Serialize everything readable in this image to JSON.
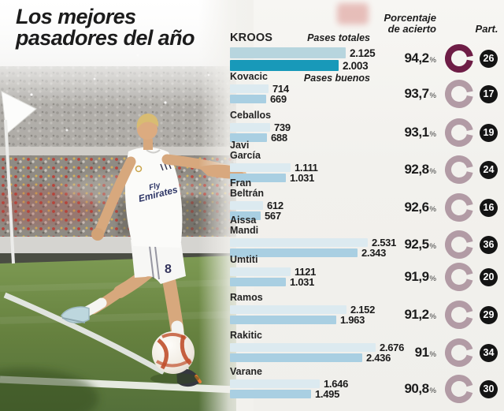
{
  "title": {
    "line1": "Los mejores",
    "line2": "pasadores del año"
  },
  "columns": {
    "accuracy_line1": "Porcentaje",
    "accuracy_line2": "de acierto",
    "participation": "Part."
  },
  "legend": {
    "total_label": "Pases totales",
    "good_label": "Pases buenos"
  },
  "photo": {
    "jersey_line1": "Fly",
    "jersey_line2": "Emirates",
    "shorts_number": "8"
  },
  "colors": {
    "text": "#1c1c1c",
    "bar_total": "#dceaf0",
    "bar_good": "#a9cfe2",
    "bar_total_highlight": "#b7d5de",
    "bar_good_highlight": "#1899b9",
    "donut_highlight": "#6e1d46",
    "donut_normal": "#b29ba5",
    "badge_bg": "#141414",
    "badge_text": "#ffffff"
  },
  "chart_data": {
    "type": "bar",
    "orientation": "horizontal",
    "series_labels": [
      "Pases totales",
      "Pases buenos"
    ],
    "percent_sign": "%",
    "players": [
      {
        "name": "KROOS",
        "name_lines": [
          "KROOS"
        ],
        "total": 2125,
        "total_display": "2.125",
        "good": 2003,
        "good_display": "2.003",
        "accuracy": 94.2,
        "accuracy_display": "94,2",
        "matches": "26",
        "highlight": true
      },
      {
        "name": "Kovacic",
        "name_lines": [
          "Kovacic"
        ],
        "total": 714,
        "total_display": "714",
        "good": 669,
        "good_display": "669",
        "accuracy": 93.7,
        "accuracy_display": "93,7",
        "matches": "17",
        "highlight": false
      },
      {
        "name": "Ceballos",
        "name_lines": [
          "Ceballos"
        ],
        "total": 739,
        "total_display": "739",
        "good": 688,
        "good_display": "688",
        "accuracy": 93.1,
        "accuracy_display": "93,1",
        "matches": "19",
        "highlight": false
      },
      {
        "name": "Javi García",
        "name_lines": [
          "Javi",
          "García"
        ],
        "total": 1111,
        "total_display": "1.111",
        "good": 1031,
        "good_display": "1.031",
        "accuracy": 92.8,
        "accuracy_display": "92,8",
        "matches": "24",
        "highlight": false
      },
      {
        "name": "Fran Beltrán",
        "name_lines": [
          "Fran",
          "Beltrán"
        ],
        "total": 612,
        "total_display": "612",
        "good": 567,
        "good_display": "567",
        "accuracy": 92.6,
        "accuracy_display": "92,6",
        "matches": "16",
        "highlight": false
      },
      {
        "name": "Aissa Mandi",
        "name_lines": [
          "Aissa",
          "Mandi"
        ],
        "total": 2531,
        "total_display": "2.531",
        "good": 2343,
        "good_display": "2.343",
        "accuracy": 92.5,
        "accuracy_display": "92,5",
        "matches": "36",
        "highlight": false
      },
      {
        "name": "Umtiti",
        "name_lines": [
          "Umtiti"
        ],
        "total": 1121,
        "total_display": "1121",
        "good": 1031,
        "good_display": "1.031",
        "accuracy": 91.9,
        "accuracy_display": "91,9",
        "matches": "20",
        "highlight": false
      },
      {
        "name": "Ramos",
        "name_lines": [
          "Ramos"
        ],
        "total": 2152,
        "total_display": "2.152",
        "good": 1963,
        "good_display": "1.963",
        "accuracy": 91.2,
        "accuracy_display": "91,2",
        "matches": "29",
        "highlight": false
      },
      {
        "name": "Rakitic",
        "name_lines": [
          "Rakitic"
        ],
        "total": 2676,
        "total_display": "2.676",
        "good": 2436,
        "good_display": "2.436",
        "accuracy": 91.0,
        "accuracy_display": "91",
        "matches": "34",
        "highlight": false
      },
      {
        "name": "Varane",
        "name_lines": [
          "Varane"
        ],
        "total": 1646,
        "total_display": "1.646",
        "good": 1495,
        "good_display": "1.495",
        "accuracy": 90.8,
        "accuracy_display": "90,8",
        "matches": "30",
        "highlight": false
      }
    ]
  }
}
